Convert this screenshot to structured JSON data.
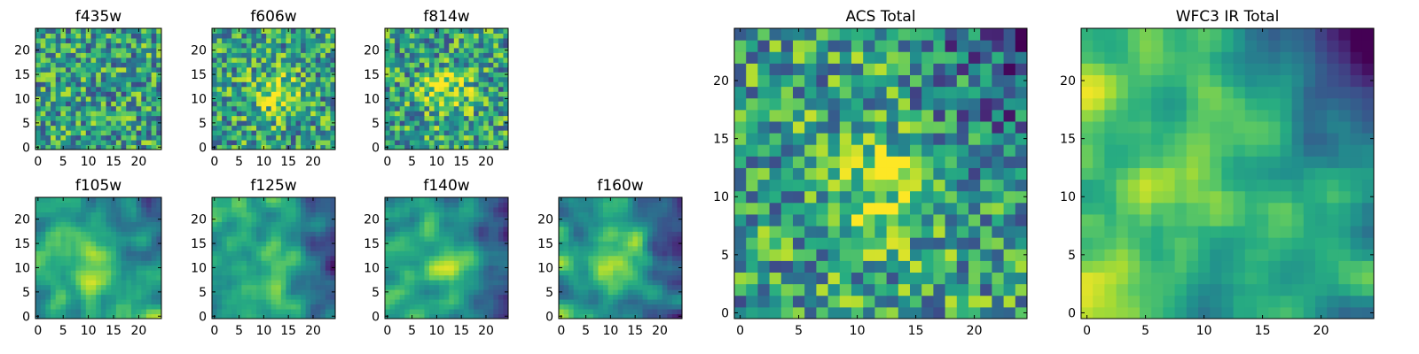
{
  "figure": {
    "colormap": "viridis",
    "grid": false,
    "axis_color": "#000000"
  },
  "chart_data": [
    {
      "type": "heatmap",
      "title": "f435w",
      "grid_size": 25,
      "xlim": [
        0,
        24
      ],
      "ylim": [
        0,
        24
      ],
      "xticks": [
        0,
        5,
        10,
        15,
        20
      ],
      "yticks": [
        0,
        5,
        10,
        15,
        20
      ],
      "pattern": "noisy",
      "dark_region": "none"
    },
    {
      "type": "heatmap",
      "title": "f606w",
      "grid_size": 25,
      "xlim": [
        0,
        24
      ],
      "ylim": [
        0,
        24
      ],
      "xticks": [
        0,
        5,
        10,
        15,
        20
      ],
      "yticks": [
        0,
        5,
        10,
        15,
        20
      ],
      "pattern": "noisy-central-source",
      "dark_region": "none"
    },
    {
      "type": "heatmap",
      "title": "f814w",
      "grid_size": 25,
      "xlim": [
        0,
        24
      ],
      "ylim": [
        0,
        24
      ],
      "xticks": [
        0,
        5,
        10,
        15,
        20
      ],
      "yticks": [
        0,
        5,
        10,
        15,
        20
      ],
      "pattern": "noisy-central-source",
      "dark_region": "none"
    },
    {
      "type": "heatmap",
      "title": "f105w",
      "grid_size": 25,
      "xlim": [
        0,
        24
      ],
      "ylim": [
        0,
        24
      ],
      "xticks": [
        0,
        5,
        10,
        15,
        20
      ],
      "yticks": [
        0,
        5,
        10,
        15,
        20
      ],
      "pattern": "smooth-central-source",
      "dark_region": "upper-right"
    },
    {
      "type": "heatmap",
      "title": "f125w",
      "grid_size": 25,
      "xlim": [
        0,
        24
      ],
      "ylim": [
        0,
        24
      ],
      "xticks": [
        0,
        5,
        10,
        15,
        20
      ],
      "yticks": [
        0,
        5,
        10,
        15,
        20
      ],
      "pattern": "smooth-central-source",
      "dark_region": "right"
    },
    {
      "type": "heatmap",
      "title": "f140w",
      "grid_size": 25,
      "xlim": [
        0,
        24
      ],
      "ylim": [
        0,
        24
      ],
      "xticks": [
        0,
        5,
        10,
        15,
        20
      ],
      "yticks": [
        0,
        5,
        10,
        15,
        20
      ],
      "pattern": "smooth-central-source",
      "dark_region": "right"
    },
    {
      "type": "heatmap",
      "title": "f160w",
      "grid_size": 25,
      "xlim": [
        0,
        24
      ],
      "ylim": [
        0,
        24
      ],
      "xticks": [
        0,
        5,
        10,
        15,
        20
      ],
      "yticks": [
        0,
        5,
        10,
        15,
        20
      ],
      "pattern": "smooth-central-source",
      "dark_region": "right"
    },
    {
      "type": "heatmap",
      "title": "ACS Total",
      "grid_size": 25,
      "xlim": [
        0,
        24
      ],
      "ylim": [
        0,
        24
      ],
      "xticks": [
        0,
        5,
        10,
        15,
        20
      ],
      "yticks": [
        0,
        5,
        10,
        15,
        20
      ],
      "pattern": "noisy-central-source",
      "dark_region": "upper-right"
    },
    {
      "type": "heatmap",
      "title": "WFC3 IR Total",
      "grid_size": 25,
      "xlim": [
        0,
        24
      ],
      "ylim": [
        0,
        24
      ],
      "xticks": [
        0,
        5,
        10,
        15,
        20
      ],
      "yticks": [
        0,
        5,
        10,
        15,
        20
      ],
      "pattern": "smooth-bright-left",
      "dark_region": "upper-right"
    }
  ]
}
